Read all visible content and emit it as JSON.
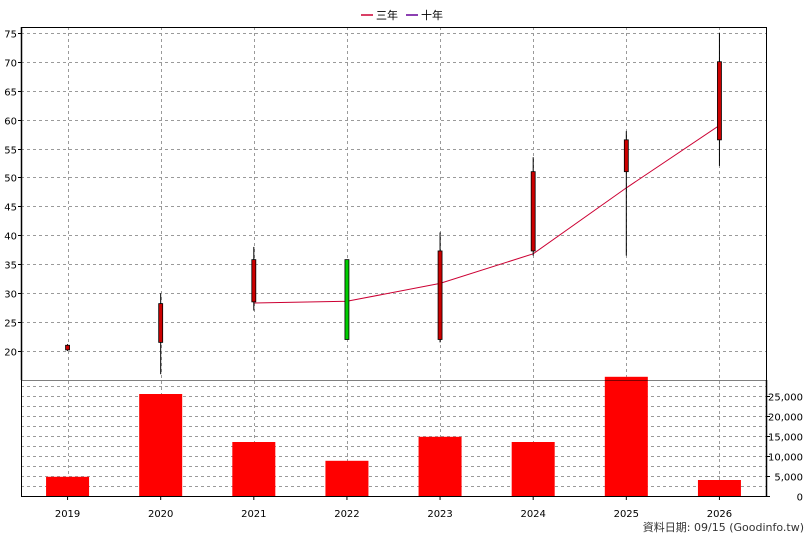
{
  "legend": [
    {
      "label": "三年",
      "color": "#cc0033"
    },
    {
      "label": "十年",
      "color": "#660099"
    }
  ],
  "footer": "資料日期: 09/15  (Goodinfo.tw)",
  "chart_data": {
    "type": "candlestick+line+bar",
    "categories": [
      "2019",
      "2020",
      "2021",
      "2022",
      "2023",
      "2024",
      "2025",
      "2026"
    ],
    "price_ylim": [
      15,
      76
    ],
    "price_yticks": [
      20,
      25,
      30,
      35,
      40,
      45,
      50,
      55,
      60,
      65,
      70,
      75
    ],
    "candles": [
      {
        "year": "2019",
        "open": 20.2,
        "close": 21.0,
        "high": 21.2,
        "low": 20.0,
        "up": true
      },
      {
        "year": "2020",
        "open": 21.5,
        "close": 28.2,
        "high": 30.0,
        "low": 16.0,
        "up": true
      },
      {
        "year": "2021",
        "open": 28.5,
        "close": 35.8,
        "high": 38.0,
        "low": 27.0,
        "up": true
      },
      {
        "year": "2022",
        "open": 35.8,
        "close": 22.0,
        "high": 35.8,
        "low": 22.0,
        "up": false
      },
      {
        "year": "2023",
        "open": 22.0,
        "close": 37.3,
        "high": 40.5,
        "low": 21.5,
        "up": true
      },
      {
        "year": "2024",
        "open": 37.3,
        "close": 51.0,
        "high": 53.5,
        "low": 36.5,
        "up": true
      },
      {
        "year": "2025",
        "open": 51.0,
        "close": 56.5,
        "high": 58.0,
        "low": 36.5,
        "up": true
      },
      {
        "year": "2026",
        "open": 56.5,
        "close": 70.0,
        "high": 75.0,
        "low": 52.0,
        "up": true
      }
    ],
    "series": [
      {
        "name": "三年",
        "color": "#cc0033",
        "x": [
          "2021",
          "2022",
          "2023",
          "2024",
          "2025",
          "2026"
        ],
        "values": [
          28.3,
          28.6,
          31.7,
          36.8,
          48.2,
          59.0
        ]
      }
    ],
    "volume": {
      "ylim": [
        0,
        29000
      ],
      "yticks": [
        0,
        5000,
        10000,
        15000,
        20000,
        25000
      ],
      "ytick_labels": [
        "0",
        "5,000",
        "10,000",
        "15,000",
        "20,000",
        "25,000"
      ],
      "values": [
        4800,
        25500,
        13500,
        8800,
        14800,
        13500,
        29800,
        4000
      ],
      "color": "#ff0000"
    },
    "grid": true,
    "legend_position": "top-center"
  }
}
